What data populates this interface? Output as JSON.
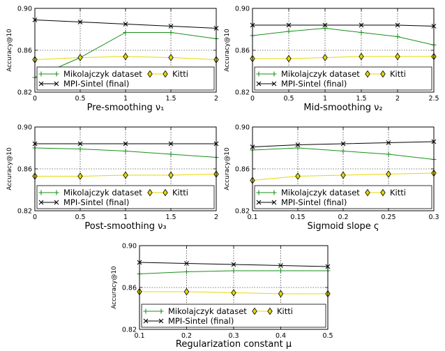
{
  "chart_data": [
    {
      "type": "line",
      "xlabel": "Pre-smoothing ν₁",
      "ylabel": "Accuracy@10",
      "xlim": [
        0,
        2
      ],
      "ylim": [
        0.82,
        0.9
      ],
      "xticks": [
        "0",
        "0.5",
        "1",
        "1.5",
        "2"
      ],
      "yticks": [
        "0.82",
        "0.86",
        "0.90"
      ],
      "grid": true,
      "legend_position": "lower",
      "series": [
        {
          "name": "Mikolajczyk dataset",
          "color": "#1a8f1a",
          "marker": "plus",
          "x": [
            0,
            0.5,
            1,
            1.5,
            2
          ],
          "y": [
            0.834,
            0.853,
            0.877,
            0.877,
            0.871
          ]
        },
        {
          "name": "Kitti",
          "color": "#e6d800",
          "marker": "diamond",
          "x": [
            0,
            0.5,
            1,
            1.5,
            2
          ],
          "y": [
            0.851,
            0.853,
            0.854,
            0.853,
            0.851
          ]
        },
        {
          "name": "MPI-Sintel (final)",
          "color": "#000000",
          "marker": "x",
          "x": [
            0,
            0.5,
            1,
            1.5,
            2
          ],
          "y": [
            0.889,
            0.887,
            0.885,
            0.883,
            0.881
          ]
        }
      ]
    },
    {
      "type": "line",
      "xlabel": "Mid-smoothing ν₂",
      "ylabel": "Accuracy@10",
      "xlim": [
        0,
        2.5
      ],
      "ylim": [
        0.82,
        0.9
      ],
      "xticks": [
        "0",
        "0.5",
        "1",
        "1.5",
        "2",
        "2.5"
      ],
      "yticks": [
        "0.82",
        "0.86",
        "0.90"
      ],
      "grid": true,
      "legend_position": "lower",
      "series": [
        {
          "name": "Mikolajczyk dataset",
          "color": "#1a8f1a",
          "marker": "plus",
          "x": [
            0,
            0.5,
            1,
            1.5,
            2,
            2.5
          ],
          "y": [
            0.874,
            0.878,
            0.881,
            0.877,
            0.873,
            0.865
          ]
        },
        {
          "name": "Kitti",
          "color": "#e6d800",
          "marker": "diamond",
          "x": [
            0,
            0.5,
            1,
            1.5,
            2,
            2.5
          ],
          "y": [
            0.852,
            0.852,
            0.853,
            0.854,
            0.854,
            0.854
          ]
        },
        {
          "name": "MPI-Sintel (final)",
          "color": "#000000",
          "marker": "x",
          "x": [
            0,
            0.5,
            1,
            1.5,
            2,
            2.5
          ],
          "y": [
            0.884,
            0.884,
            0.884,
            0.884,
            0.884,
            0.883
          ]
        }
      ]
    },
    {
      "type": "line",
      "xlabel": "Post-smoothing ν₃",
      "ylabel": "Accuracy@10",
      "xlim": [
        0,
        2
      ],
      "ylim": [
        0.82,
        0.9
      ],
      "xticks": [
        "0",
        "0.5",
        "1",
        "1.5",
        "2"
      ],
      "yticks": [
        "0.82",
        "0.86",
        "0.90"
      ],
      "grid": true,
      "legend_position": "lower",
      "series": [
        {
          "name": "Mikolajczyk dataset",
          "color": "#1a8f1a",
          "marker": "plus",
          "x": [
            0,
            0.5,
            1,
            1.5,
            2
          ],
          "y": [
            0.88,
            0.879,
            0.877,
            0.874,
            0.871
          ]
        },
        {
          "name": "Kitti",
          "color": "#e6d800",
          "marker": "diamond",
          "x": [
            0,
            0.5,
            1,
            1.5,
            2
          ],
          "y": [
            0.853,
            0.853,
            0.854,
            0.854,
            0.855
          ]
        },
        {
          "name": "MPI-Sintel (final)",
          "color": "#000000",
          "marker": "x",
          "x": [
            0,
            0.5,
            1,
            1.5,
            2
          ],
          "y": [
            0.884,
            0.884,
            0.884,
            0.884,
            0.884
          ]
        }
      ]
    },
    {
      "type": "line",
      "xlabel": "Sigmoid slope ς",
      "ylabel": "Accuracy@10",
      "xlim": [
        0.1,
        0.3
      ],
      "ylim": [
        0.82,
        0.9
      ],
      "xticks": [
        "0.1",
        "0.15",
        "0.2",
        "0.25",
        "0.3"
      ],
      "yticks": [
        "0.82",
        "0.86",
        "0.90"
      ],
      "grid": true,
      "legend_position": "lower",
      "series": [
        {
          "name": "Mikolajczyk dataset",
          "color": "#1a8f1a",
          "marker": "plus",
          "x": [
            0.1,
            0.15,
            0.2,
            0.25,
            0.3
          ],
          "y": [
            0.878,
            0.88,
            0.877,
            0.874,
            0.869
          ]
        },
        {
          "name": "Kitti",
          "color": "#e6d800",
          "marker": "diamond",
          "x": [
            0.1,
            0.15,
            0.2,
            0.25,
            0.3
          ],
          "y": [
            0.849,
            0.853,
            0.854,
            0.855,
            0.856
          ]
        },
        {
          "name": "MPI-Sintel (final)",
          "color": "#000000",
          "marker": "x",
          "x": [
            0.1,
            0.15,
            0.2,
            0.25,
            0.3
          ],
          "y": [
            0.881,
            0.883,
            0.884,
            0.885,
            0.886
          ]
        }
      ]
    },
    {
      "type": "line",
      "xlabel": "Regularization constant μ",
      "ylabel": "Accuracy@10",
      "xlim": [
        0.1,
        0.5
      ],
      "ylim": [
        0.82,
        0.9
      ],
      "xticks": [
        "0.1",
        "0.2",
        "0.3",
        "0.4",
        "0.5"
      ],
      "yticks": [
        "0.82",
        "0.86",
        "0.90"
      ],
      "grid": true,
      "legend_position": "lower",
      "series": [
        {
          "name": "Mikolajczyk dataset",
          "color": "#1a8f1a",
          "marker": "plus",
          "x": [
            0.1,
            0.2,
            0.3,
            0.4,
            0.5
          ],
          "y": [
            0.873,
            0.875,
            0.876,
            0.876,
            0.876
          ]
        },
        {
          "name": "Kitti",
          "color": "#e6d800",
          "marker": "diamond",
          "x": [
            0.1,
            0.2,
            0.3,
            0.4,
            0.5
          ],
          "y": [
            0.856,
            0.856,
            0.855,
            0.854,
            0.854
          ]
        },
        {
          "name": "MPI-Sintel (final)",
          "color": "#000000",
          "marker": "x",
          "x": [
            0.1,
            0.2,
            0.3,
            0.4,
            0.5
          ],
          "y": [
            0.884,
            0.883,
            0.882,
            0.881,
            0.88
          ]
        }
      ]
    }
  ]
}
